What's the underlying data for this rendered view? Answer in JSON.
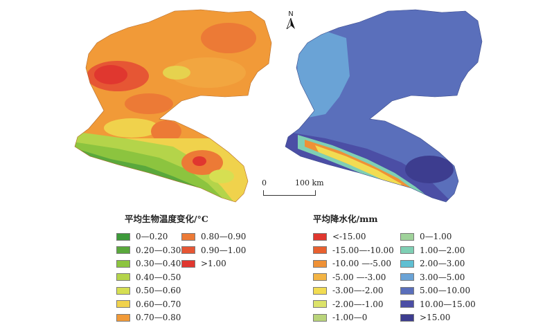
{
  "north_label": "N",
  "scale": {
    "zero": "0",
    "max": "100 km"
  },
  "temp_legend": {
    "title": "平均生物温度变化/°C",
    "items": [
      {
        "label": "0—0.20",
        "color": "#3d9a3a"
      },
      {
        "label": "0.20—0.30",
        "color": "#5aa83c"
      },
      {
        "label": "0.30—0.40",
        "color": "#8cc43f"
      },
      {
        "label": "0.40—0.50",
        "color": "#b4d44a"
      },
      {
        "label": "0.50—0.60",
        "color": "#d6df52"
      },
      {
        "label": "0.60—0.70",
        "color": "#f0d24c"
      },
      {
        "label": "0.70—0.80",
        "color": "#f19a38"
      },
      {
        "label": "0.80—0.90",
        "color": "#ec7a36"
      },
      {
        "label": "0.90—1.00",
        "color": "#e65634"
      },
      {
        "label": ">1.00",
        "color": "#e0372f"
      }
    ]
  },
  "precip_legend": {
    "title": "平均降水化/mm",
    "items": [
      {
        "label": "<-15.00",
        "color": "#e0372f"
      },
      {
        "label": "-15.00—-10.00",
        "color": "#e8602f"
      },
      {
        "label": "-10.00 —-5.00",
        "color": "#ef9136"
      },
      {
        "label": "-5.00 —-3.00",
        "color": "#f3b444"
      },
      {
        "label": "-3.00—-2.00",
        "color": "#f2dc52"
      },
      {
        "label": "-2.00—-1.00",
        "color": "#dce36a"
      },
      {
        "label": "-1.00—0",
        "color": "#b9d47a"
      },
      {
        "label": "0—1.00",
        "color": "#9fd29a"
      },
      {
        "label": "1.00—2.00",
        "color": "#7fcfb4"
      },
      {
        "label": "2.00—3.00",
        "color": "#5fbfd2"
      },
      {
        "label": "3.00—5.00",
        "color": "#6aa3d6"
      },
      {
        "label": "5.00—10.00",
        "color": "#5a6fbb"
      },
      {
        "label": "10.00—15.00",
        "color": "#4b4ea5"
      },
      {
        "label": ">15.00",
        "color": "#3d3d8f"
      }
    ]
  }
}
